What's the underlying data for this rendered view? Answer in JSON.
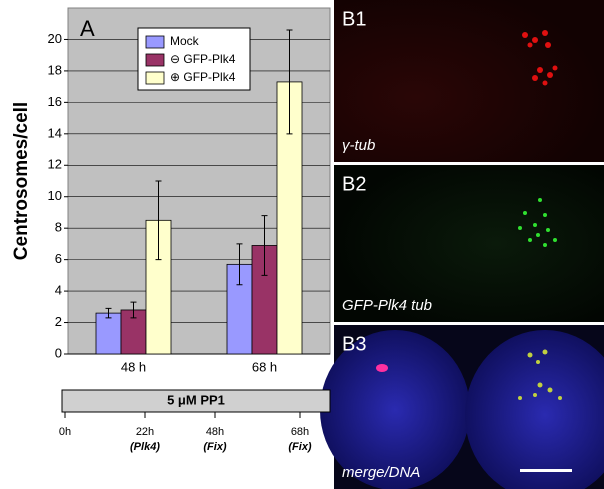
{
  "chart_data": {
    "type": "bar",
    "panel_label": "A",
    "y_label": "Centrosomes/cell",
    "categories": [
      "48 h",
      "68 h"
    ],
    "series": [
      {
        "name": "Mock",
        "color": "#9999ff",
        "values": [
          2.6,
          5.7
        ],
        "errors": [
          0.3,
          1.3
        ]
      },
      {
        "name": "⊖ GFP-Plk4",
        "color": "#993366",
        "values": [
          2.8,
          6.9
        ],
        "errors": [
          0.5,
          1.9
        ]
      },
      {
        "name": "⊕ GFP-Plk4",
        "color": "#ffffcc",
        "values": [
          8.5,
          17.3
        ],
        "errors": [
          2.5,
          3.3
        ]
      }
    ],
    "ylim": [
      0,
      22
    ],
    "yticks": [
      0,
      2,
      4,
      6,
      8,
      10,
      12,
      14,
      16,
      18,
      20
    ],
    "grid": true
  },
  "timeline": {
    "label": "5 μM PP1",
    "ticks": [
      {
        "time": "0h"
      },
      {
        "time": "22h",
        "note": "(Plk4)"
      },
      {
        "time": "48h",
        "note": "(Fix)"
      },
      {
        "time": "68h",
        "note": "(Fix)"
      }
    ]
  },
  "panels": [
    {
      "label": "B1",
      "caption": "γ-tub"
    },
    {
      "label": "B2",
      "caption": "GFP-Plk4 tub"
    },
    {
      "label": "B3",
      "caption": "merge/DNA"
    }
  ]
}
